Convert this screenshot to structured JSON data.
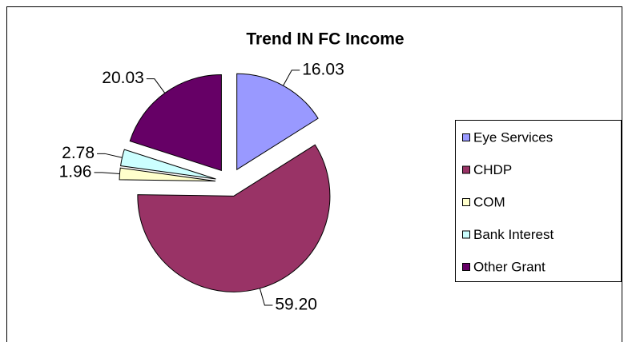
{
  "chart_data": {
    "type": "pie",
    "title": "Trend IN FC Income",
    "categories": [
      "Eye Services",
      "CHDP",
      "COM",
      "Bank Interest",
      "Other Grant"
    ],
    "values": [
      16.03,
      59.2,
      1.96,
      2.78,
      20.03
    ],
    "value_labels": [
      "16.03",
      "59.20",
      "1.96",
      "2.78",
      "20.03"
    ],
    "colors": [
      "#9999ff",
      "#993366",
      "#ffffcc",
      "#ccffff",
      "#660066"
    ],
    "legend": "right",
    "exploded": true
  }
}
